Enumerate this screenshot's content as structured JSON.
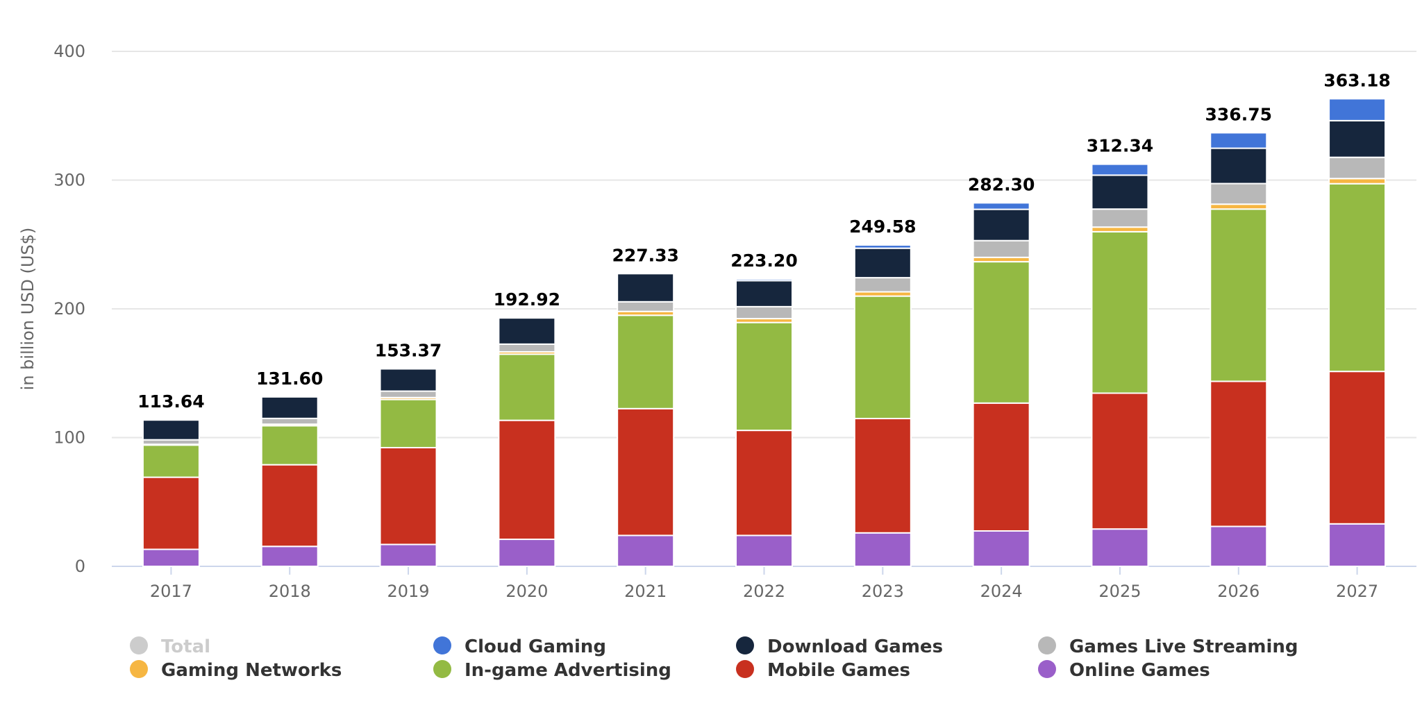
{
  "chart_data": {
    "type": "bar",
    "stacked": true,
    "title": "",
    "xlabel": "",
    "ylabel": "in billion USD (US$)",
    "ylim": [
      0,
      400
    ],
    "yticks": [
      "0",
      "100",
      "200",
      "300",
      "400"
    ],
    "grid": true,
    "legend_position": "bottom",
    "categories": [
      "2017",
      "2018",
      "2019",
      "2020",
      "2021",
      "2022",
      "2023",
      "2024",
      "2025",
      "2026",
      "2027"
    ],
    "totals": [
      "113.64",
      "131.60",
      "153.37",
      "192.92",
      "227.33",
      "223.20",
      "249.58",
      "282.30",
      "312.34",
      "336.75",
      "363.18"
    ],
    "series": [
      {
        "name": "Online Games",
        "color": "#9a5fc9",
        "values": [
          13.2,
          15.5,
          17,
          21,
          24,
          24,
          26,
          27.5,
          29,
          31,
          33
        ]
      },
      {
        "name": "Mobile Games",
        "color": "#c8301f",
        "values": [
          56,
          63.4,
          75.2,
          92.4,
          98.5,
          81.6,
          88.8,
          99.3,
          105.5,
          112.7,
          118.4
        ]
      },
      {
        "name": "In-game Advertising",
        "color": "#93ba43",
        "values": [
          25,
          30.3,
          37.4,
          51.4,
          72.5,
          83.8,
          95.1,
          109.8,
          125.4,
          133.8,
          145.8
        ]
      },
      {
        "name": "Gaming Networks",
        "color": "#f6b642",
        "values": [
          0.6,
          1.2,
          1.5,
          1.8,
          3,
          3,
          3.3,
          3.4,
          3.6,
          3.8,
          4
        ]
      },
      {
        "name": "Games Live Streaming",
        "color": "#b8b8b8",
        "values": [
          3.5,
          4.5,
          5,
          6,
          7.5,
          9.3,
          11,
          13,
          14,
          16,
          16.5
        ]
      },
      {
        "name": "Download Games",
        "color": "#16263d",
        "values": [
          15.34,
          16.7,
          17.27,
          20.32,
          21.83,
          20.2,
          22.88,
          24.3,
          26.34,
          27.45,
          28.48
        ]
      },
      {
        "name": "Cloud Gaming",
        "color": "#4175d8",
        "values": [
          0,
          0,
          0,
          0,
          0,
          1.3,
          2.5,
          5,
          8.5,
          12,
          17
        ]
      }
    ],
    "legend": [
      {
        "name": "Total",
        "color": "#cccccc",
        "hidden": true
      },
      {
        "name": "Cloud Gaming",
        "color": "#4175d8"
      },
      {
        "name": "Download Games",
        "color": "#16263d"
      },
      {
        "name": "Games Live Streaming",
        "color": "#b8b8b8"
      },
      {
        "name": "Gaming Networks",
        "color": "#f6b642"
      },
      {
        "name": "In-game Advertising",
        "color": "#93ba43"
      },
      {
        "name": "Mobile Games",
        "color": "#c8301f"
      },
      {
        "name": "Online Games",
        "color": "#9a5fc9"
      }
    ]
  }
}
